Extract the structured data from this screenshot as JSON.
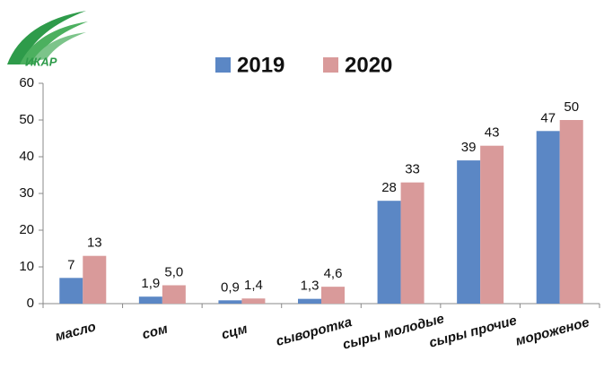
{
  "logo": "ИКАР",
  "chart_data": {
    "type": "bar",
    "categories": [
      "масло",
      "сом",
      "сцм",
      "сыворотка",
      "сыры молодые",
      "сыры прочие",
      "мороженое"
    ],
    "series": [
      {
        "name": "2019",
        "color": "#5b87c5",
        "values": [
          7,
          1.9,
          0.9,
          1.3,
          28,
          39,
          47
        ],
        "value_labels": [
          "7",
          "1,9",
          "0,9",
          "1,3",
          "28",
          "39",
          "47"
        ]
      },
      {
        "name": "2020",
        "color": "#d99a9a",
        "values": [
          13,
          5.0,
          1.4,
          4.6,
          33,
          43,
          50
        ],
        "value_labels": [
          "13",
          "5,0",
          "1,4",
          "4,6",
          "33",
          "43",
          "50"
        ]
      }
    ],
    "ylim": [
      0,
      60
    ],
    "yticks": [
      0,
      10,
      20,
      30,
      40,
      50,
      60
    ],
    "grid": false,
    "legend": "top"
  }
}
